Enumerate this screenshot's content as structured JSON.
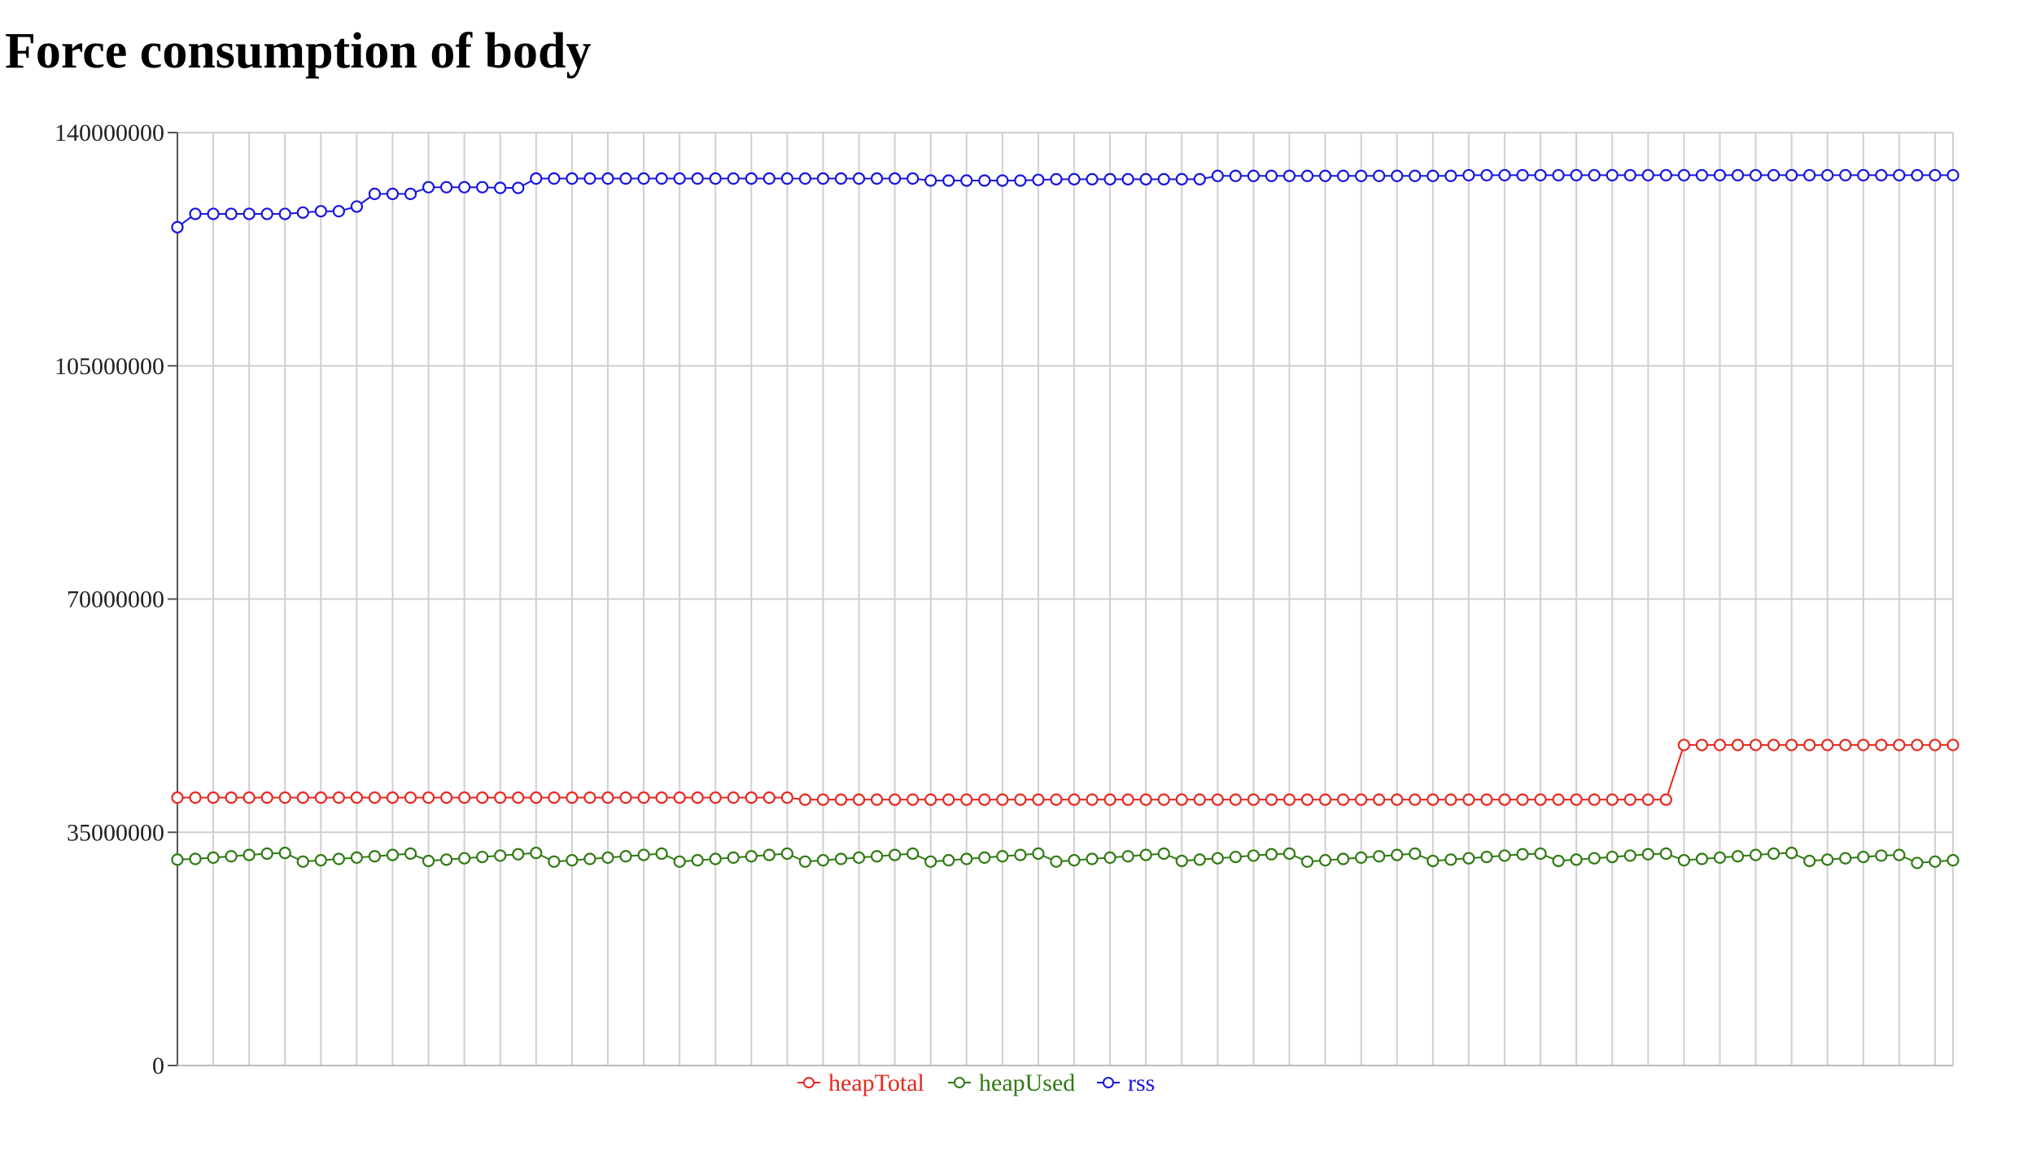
{
  "page": {
    "title": "Force consumption of body"
  },
  "chart_data": {
    "type": "line",
    "title": "",
    "xlabel": "",
    "ylabel": "",
    "ylim": [
      0,
      140000000
    ],
    "yticks": [
      0,
      35000000,
      70000000,
      105000000,
      140000000
    ],
    "ytick_labels": [
      "0",
      "35000000",
      "70000000",
      "105000000",
      "140000000"
    ],
    "grid": true,
    "legend_position": "bottom-center",
    "point_count": 100,
    "series": [
      {
        "name": "heapTotal",
        "color": "#e8281e",
        "values": [
          40200000,
          40200000,
          40200000,
          40200000,
          40200000,
          40200000,
          40200000,
          40200000,
          40200000,
          40200000,
          40200000,
          40200000,
          40200000,
          40200000,
          40200000,
          40200000,
          40200000,
          40200000,
          40200000,
          40200000,
          40200000,
          40200000,
          40200000,
          40200000,
          40200000,
          40200000,
          40200000,
          40200000,
          40200000,
          40200000,
          40200000,
          40200000,
          40200000,
          40200000,
          40200000,
          39900000,
          39900000,
          39900000,
          39900000,
          39900000,
          39900000,
          39900000,
          39900000,
          39900000,
          39900000,
          39900000,
          39900000,
          39900000,
          39900000,
          39900000,
          39900000,
          39900000,
          39900000,
          39900000,
          39900000,
          39900000,
          39900000,
          39900000,
          39900000,
          39900000,
          39900000,
          39900000,
          39900000,
          39900000,
          39900000,
          39900000,
          39900000,
          39900000,
          39900000,
          39900000,
          39900000,
          39900000,
          39900000,
          39900000,
          39900000,
          39900000,
          39900000,
          39900000,
          39900000,
          39900000,
          39900000,
          39900000,
          39900000,
          39900000,
          48100000,
          48100000,
          48100000,
          48100000,
          48100000,
          48100000,
          48100000,
          48100000,
          48100000,
          48100000,
          48100000,
          48100000,
          48100000,
          48100000,
          48100000,
          48100000
        ]
      },
      {
        "name": "heapUsed",
        "color": "#2e7a12",
        "values": [
          30900000,
          31000000,
          31200000,
          31400000,
          31600000,
          31800000,
          31900000,
          30600000,
          30800000,
          31000000,
          31200000,
          31400000,
          31600000,
          31800000,
          30700000,
          30900000,
          31100000,
          31300000,
          31500000,
          31700000,
          31900000,
          30600000,
          30800000,
          31000000,
          31200000,
          31400000,
          31600000,
          31800000,
          30600000,
          30800000,
          31000000,
          31200000,
          31400000,
          31600000,
          31800000,
          30600000,
          30800000,
          31000000,
          31200000,
          31400000,
          31600000,
          31800000,
          30600000,
          30800000,
          31000000,
          31200000,
          31400000,
          31600000,
          31800000,
          30600000,
          30800000,
          31000000,
          31200000,
          31400000,
          31600000,
          31800000,
          30700000,
          30900000,
          31100000,
          31300000,
          31500000,
          31700000,
          31800000,
          30600000,
          30800000,
          31000000,
          31200000,
          31400000,
          31600000,
          31800000,
          30700000,
          30900000,
          31100000,
          31300000,
          31500000,
          31700000,
          31800000,
          30700000,
          30900000,
          31100000,
          31300000,
          31500000,
          31700000,
          31800000,
          30800000,
          31000000,
          31200000,
          31400000,
          31600000,
          31800000,
          31900000,
          30700000,
          30900000,
          31100000,
          31300000,
          31500000,
          31600000,
          30400000,
          30600000,
          30800000
        ]
      },
      {
        "name": "rss",
        "color": "#1515e0",
        "values": [
          125800000,
          127800000,
          127800000,
          127800000,
          127800000,
          127800000,
          127800000,
          128000000,
          128200000,
          128200000,
          128900000,
          130800000,
          130800000,
          130800000,
          131800000,
          131800000,
          131800000,
          131800000,
          131700000,
          131700000,
          133100000,
          133100000,
          133100000,
          133100000,
          133100000,
          133100000,
          133100000,
          133100000,
          133100000,
          133100000,
          133100000,
          133100000,
          133100000,
          133100000,
          133100000,
          133100000,
          133100000,
          133100000,
          133100000,
          133100000,
          133100000,
          133100000,
          132800000,
          132800000,
          132800000,
          132800000,
          132800000,
          132800000,
          132900000,
          133000000,
          133000000,
          133000000,
          133000000,
          133000000,
          133000000,
          133000000,
          133000000,
          133000000,
          133500000,
          133500000,
          133500000,
          133500000,
          133500000,
          133500000,
          133500000,
          133500000,
          133500000,
          133500000,
          133500000,
          133500000,
          133500000,
          133500000,
          133600000,
          133600000,
          133600000,
          133600000,
          133600000,
          133600000,
          133600000,
          133600000,
          133600000,
          133600000,
          133600000,
          133600000,
          133600000,
          133600000,
          133600000,
          133600000,
          133600000,
          133600000,
          133600000,
          133600000,
          133600000,
          133600000,
          133600000,
          133600000,
          133600000,
          133600000,
          133600000,
          133600000
        ]
      }
    ]
  }
}
